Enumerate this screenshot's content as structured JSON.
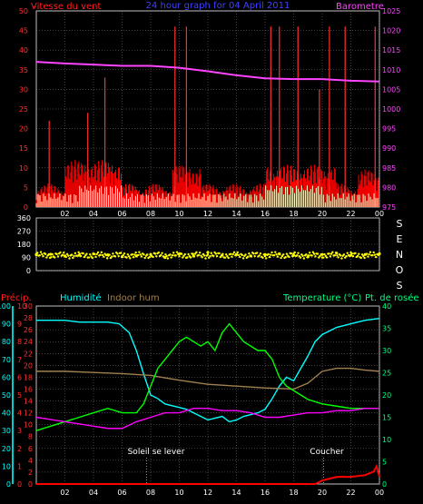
{
  "chart_data": [
    {
      "type": "line",
      "title": "24 hour graph for  04 April 2011",
      "ylabel_left": "Vitesse du vent",
      "ylabel_right": "Barometre",
      "x_ticks": [
        "02",
        "04",
        "06",
        "08",
        "10",
        "12",
        "14",
        "16",
        "18",
        "20",
        "22",
        "00"
      ],
      "ylim_left": [
        0,
        50
      ],
      "y_ticks_left": [
        0,
        5,
        10,
        15,
        20,
        25,
        30,
        35,
        40,
        45,
        50
      ],
      "ylim_right": [
        975,
        1025
      ],
      "y_ticks_right": [
        975,
        980,
        985,
        990,
        995,
        1000,
        1005,
        1010,
        1015,
        1020,
        1025
      ],
      "colors": {
        "wind": "#ff0000",
        "gust": "#ff3030",
        "avg": "#ffffcc",
        "baro": "#ff44ff",
        "grid": "#808080"
      },
      "series": [
        {
          "name": "Barometre",
          "axis": "right",
          "x": [
            0,
            2,
            4,
            6,
            8,
            10,
            12,
            14,
            16,
            18,
            20,
            22,
            24
          ],
          "values": [
            1012,
            1011.6,
            1011.3,
            1011,
            1011,
            1010.5,
            1009.6,
            1008.6,
            1007.8,
            1007.6,
            1007.6,
            1007.2,
            1007.0
          ]
        }
      ],
      "gust_spikes": [
        {
          "x": 0.9,
          "value": 22
        },
        {
          "x": 3.6,
          "value": 24
        },
        {
          "x": 4.8,
          "value": 33
        },
        {
          "x": 9.7,
          "value": 46
        },
        {
          "x": 10.5,
          "value": 46
        },
        {
          "x": 16.4,
          "value": 46
        },
        {
          "x": 17.0,
          "value": 46
        },
        {
          "x": 18.3,
          "value": 46
        },
        {
          "x": 19.8,
          "value": 30
        },
        {
          "x": 20.5,
          "value": 46
        },
        {
          "x": 21.6,
          "value": 46
        },
        {
          "x": 23.7,
          "value": 46
        }
      ]
    },
    {
      "type": "scatter",
      "ylabel_right": [
        "S",
        "E",
        "N",
        "O",
        "S"
      ],
      "x_ticks": [
        "02",
        "04",
        "06",
        "08",
        "10",
        "12",
        "14",
        "16",
        "18",
        "20",
        "22",
        "00"
      ],
      "ylim": [
        0,
        360
      ],
      "y_ticks": [
        0,
        90,
        180,
        270,
        360
      ],
      "color": "#ffff00",
      "series": [
        {
          "name": "",
          "x": [
            0,
            1,
            2,
            3,
            4,
            5,
            6,
            7,
            8,
            9,
            10,
            11,
            12,
            13,
            14,
            15,
            16,
            17,
            18,
            19,
            20,
            21,
            22,
            23,
            24
          ],
          "values": [
            110,
            112,
            100,
            105,
            115,
            108,
            95,
            100,
            110,
            90,
            115,
            100,
            125,
            105,
            110,
            100,
            110,
            115,
            105,
            95,
            110,
            120,
            105,
            110,
            115
          ]
        }
      ]
    },
    {
      "type": "line",
      "labels": {
        "precip": "Précip.",
        "humidity": "Humidité",
        "indoor_hum": "Indoor hum",
        "temperature": "Temperature (°C)",
        "dewpoint": "Pt. de rosée",
        "sunrise": "Soleil se lever",
        "sunset": "Coucher"
      },
      "x_ticks": [
        "02",
        "04",
        "06",
        "08",
        "10",
        "12",
        "14",
        "16",
        "18",
        "20",
        "22",
        "00"
      ],
      "ylim_precip": [
        0,
        10
      ],
      "y_ticks_precip": [
        0,
        1,
        2,
        3,
        4,
        5,
        6,
        7,
        8,
        9,
        10
      ],
      "ylim_humidity": [
        0,
        100
      ],
      "y_ticks_humidity": [
        0,
        10,
        20,
        30,
        40,
        50,
        60,
        70,
        80,
        90,
        100
      ],
      "ylim_humidity_inner": [
        0,
        30
      ],
      "y_ticks_humidity_inner": [
        0,
        2,
        4,
        6,
        8,
        10,
        12,
        14,
        16,
        18,
        20,
        22,
        24,
        26,
        28,
        30
      ],
      "ylim_temp": [
        0,
        40
      ],
      "y_ticks_temp": [
        0,
        5,
        10,
        15,
        20,
        25,
        30,
        35,
        40
      ],
      "sunrise_x": 7.7,
      "sunset_x": 20.1,
      "colors": {
        "precip": "#ff0000",
        "humidity": "#00ffff",
        "indoor": "#a08050",
        "temp": "#00ff00",
        "dew": "#ff00ff",
        "axis_cyan": "#00cccc"
      },
      "series": [
        {
          "name": "Humidité",
          "axis": "humidity",
          "x": [
            0,
            1,
            2,
            3,
            4,
            5,
            5.8,
            6.5,
            7,
            7.5,
            8,
            8.5,
            9,
            9.5,
            10,
            10.5,
            11,
            11.5,
            12,
            12.5,
            13,
            13.5,
            14,
            14.5,
            15,
            15.5,
            16,
            16.5,
            17,
            17.5,
            18,
            18.5,
            19,
            19.5,
            20,
            20.5,
            21,
            22,
            23,
            24
          ],
          "values": [
            92,
            92,
            92,
            91,
            91,
            91,
            90,
            85,
            75,
            62,
            50,
            48,
            45,
            44,
            43,
            42,
            40,
            38,
            36,
            37,
            38,
            35,
            36,
            38,
            39,
            40,
            42,
            48,
            55,
            60,
            58,
            65,
            72,
            80,
            84,
            86,
            88,
            90,
            92,
            93
          ]
        },
        {
          "name": "Indoor hum",
          "axis": "humidity_inner",
          "x": [
            0,
            2,
            4,
            6,
            8,
            10,
            12,
            14,
            16,
            18,
            19,
            20,
            21,
            22,
            23,
            24
          ],
          "values": [
            19,
            19,
            18.8,
            18.6,
            18.3,
            17.5,
            16.8,
            16.5,
            16.2,
            16,
            17,
            19,
            19.5,
            19.5,
            19.2,
            19
          ]
        },
        {
          "name": "Temperature (°C)",
          "axis": "temp",
          "x": [
            0,
            1,
            2,
            3,
            4,
            5,
            6,
            7,
            7.5,
            8,
            8.5,
            9,
            9.5,
            10,
            10.5,
            11,
            11.5,
            12,
            12.5,
            13,
            13.5,
            14,
            14.5,
            15,
            15.5,
            16,
            16.5,
            17,
            17.5,
            18,
            18.5,
            19,
            20,
            21,
            22,
            23,
            24
          ],
          "values": [
            12,
            13,
            14,
            15,
            16,
            17,
            16,
            16,
            18,
            22,
            26,
            28,
            30,
            32,
            33,
            32,
            31,
            32,
            30,
            34,
            36,
            34,
            32,
            31,
            30,
            30,
            28,
            24,
            22,
            21,
            20,
            19,
            18,
            17.5,
            17,
            17,
            17
          ]
        },
        {
          "name": "Pt. de rosée",
          "axis": "temp",
          "x": [
            0,
            1,
            2,
            3,
            4,
            5,
            6,
            7,
            8,
            9,
            10,
            11,
            12,
            13,
            14,
            15,
            16,
            17,
            18,
            19,
            20,
            21,
            22,
            23,
            24
          ],
          "values": [
            15,
            14.5,
            14,
            13.5,
            13,
            12.5,
            12.5,
            14,
            15,
            16,
            16,
            17,
            17,
            16.5,
            16.5,
            16,
            15,
            15,
            15.5,
            16,
            16,
            16.5,
            16.5,
            17,
            17
          ]
        },
        {
          "name": "Précip.",
          "axis": "precip",
          "x": [
            0,
            19.5,
            20,
            20.5,
            21,
            22,
            23,
            23.6,
            23.8,
            24
          ],
          "values": [
            0,
            0,
            0.2,
            0.3,
            0.4,
            0.4,
            0.5,
            0.7,
            1.0,
            0.4
          ]
        }
      ]
    }
  ]
}
